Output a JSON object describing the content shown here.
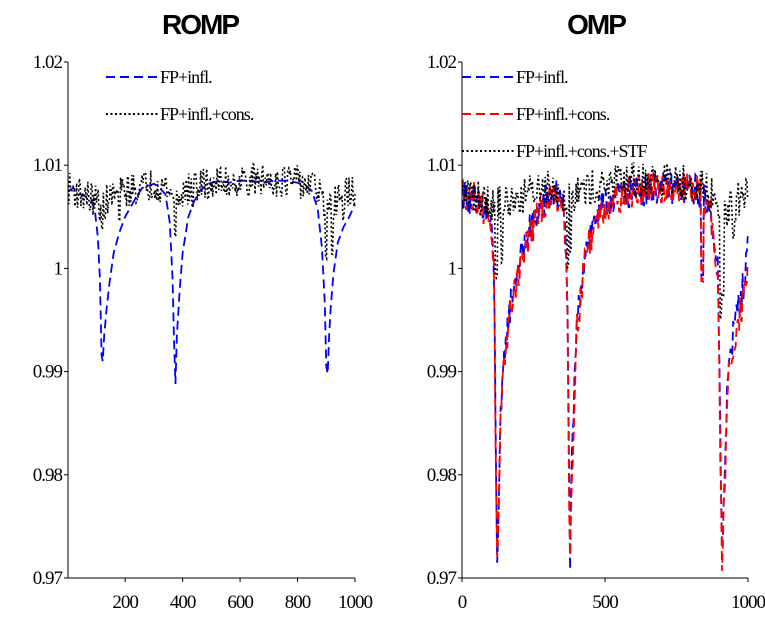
{
  "chart_data": [
    {
      "type": "line",
      "title": "ROMP",
      "xlabel": "",
      "ylabel": "",
      "xlim": [
        1,
        1000
      ],
      "ylim": [
        0.97,
        1.02
      ],
      "xticks": [
        200,
        400,
        600,
        800,
        1000
      ],
      "yticks": [
        0.97,
        0.98,
        0.99,
        1,
        1.01,
        1.02
      ],
      "ytick_labels": [
        "0.97",
        "0.98",
        "0.99",
        "1",
        "1.01",
        "1.02"
      ],
      "grid": false,
      "legend_position": "top-center",
      "series": [
        {
          "name": "FP+infl.",
          "color": "#0000ff",
          "style": "dashed",
          "x": [
            1,
            20,
            40,
            60,
            80,
            95,
            105,
            112,
            118,
            122,
            127,
            135,
            145,
            160,
            180,
            200,
            220,
            240,
            260,
            280,
            300,
            320,
            340,
            355,
            365,
            370,
            375,
            380,
            390,
            400,
            420,
            440,
            460,
            480,
            500,
            530,
            560,
            600,
            640,
            680,
            720,
            760,
            800,
            830,
            850,
            870,
            885,
            895,
            900,
            905,
            910,
            915,
            925,
            940,
            960,
            980,
            1000
          ],
          "y": [
            1.0075,
            1.0078,
            1.0072,
            1.007,
            1.0068,
            1.0055,
            1.003,
            0.999,
            0.9915,
            0.991,
            0.9935,
            0.996,
            0.9985,
            1.0015,
            1.0035,
            1.005,
            1.006,
            1.007,
            1.0078,
            1.008,
            1.0082,
            1.0078,
            1.0072,
            1.0045,
            0.999,
            0.993,
            0.9888,
            0.9935,
            0.998,
            1.0015,
            1.005,
            1.0065,
            1.0075,
            1.008,
            1.0083,
            1.0085,
            1.0083,
            1.0085,
            1.0085,
            1.0083,
            1.0085,
            1.0085,
            1.0083,
            1.008,
            1.0075,
            1.0058,
            1.002,
            0.9965,
            0.9905,
            0.9898,
            0.9935,
            0.996,
            0.9995,
            1.0025,
            1.004,
            1.005,
            1.0062
          ]
        },
        {
          "name": "FP+infl.+cons.",
          "color": "#000000",
          "style": "dotted",
          "noise": true,
          "base": [
            [
              1,
              1.0078
            ],
            [
              50,
              1.0072
            ],
            [
              100,
              1.0065
            ],
            [
              120,
              1.006
            ],
            [
              150,
              1.007
            ],
            [
              200,
              1.0075
            ],
            [
              300,
              1.0082
            ],
            [
              350,
              1.0078
            ],
            [
              370,
              1.0065
            ],
            [
              390,
              1.0072
            ],
            [
              450,
              1.008
            ],
            [
              600,
              1.0085
            ],
            [
              700,
              1.0086
            ],
            [
              800,
              1.0084
            ],
            [
              870,
              1.0078
            ],
            [
              895,
              1.006
            ],
            [
              910,
              1.0055
            ],
            [
              940,
              1.007
            ],
            [
              1000,
              1.0075
            ]
          ],
          "dips": [
            [
              120,
              1.0035
            ],
            [
              180,
              1.0045
            ],
            [
              375,
              1.0028
            ],
            [
              435,
              1.0058
            ],
            [
              900,
              1.0005
            ],
            [
              920,
              1.001
            ],
            [
              960,
              1.0045
            ]
          ],
          "amplitude": 0.0016,
          "step": 3
        }
      ]
    },
    {
      "type": "line",
      "title": "OMP",
      "xlabel": "",
      "ylabel": "",
      "xlim": [
        0,
        1000
      ],
      "ylim": [
        0.97,
        1.02
      ],
      "xticks": [
        0,
        500,
        1000
      ],
      "yticks": [
        0.97,
        0.98,
        0.99,
        1,
        1.01,
        1.02
      ],
      "ytick_labels": [
        "0.97",
        "0.98",
        "0.99",
        "1",
        "1.01",
        "1.02"
      ],
      "grid": false,
      "legend_position": "top-center",
      "series": [
        {
          "name": "FP+infl.",
          "color": "#0000ff",
          "style": "dashed",
          "noise": true,
          "base": [
            [
              0,
              1.0072
            ],
            [
              60,
              1.0062
            ],
            [
              100,
              1.0045
            ],
            [
              112,
              1.0
            ],
            [
              118,
              0.983
            ],
            [
              123,
              0.9725
            ],
            [
              127,
              0.9745
            ],
            [
              135,
              0.985
            ],
            [
              150,
              0.9925
            ],
            [
              175,
              0.9975
            ],
            [
              200,
              1.0005
            ],
            [
              240,
              1.004
            ],
            [
              280,
              1.0062
            ],
            [
              330,
              1.0072
            ],
            [
              355,
              1.006
            ],
            [
              368,
              1.0
            ],
            [
              374,
              0.98
            ],
            [
              378,
              0.972
            ],
            [
              384,
              0.9805
            ],
            [
              400,
              0.994
            ],
            [
              430,
              1.0018
            ],
            [
              470,
              1.0052
            ],
            [
              520,
              1.0068
            ],
            [
              600,
              1.0075
            ],
            [
              700,
              1.0078
            ],
            [
              800,
              1.0078
            ],
            [
              840,
              1.0072
            ],
            [
              870,
              1.0055
            ],
            [
              895,
              1.0
            ],
            [
              905,
              0.98
            ],
            [
              910,
              0.9705
            ],
            [
              916,
              0.978
            ],
            [
              930,
              0.9905
            ],
            [
              960,
              0.9955
            ],
            [
              985,
              0.9985
            ],
            [
              1000,
              1.002
            ]
          ],
          "dips": [
            [
              840,
              0.9985
            ]
          ],
          "amplitude": 0.0016,
          "step": 3
        },
        {
          "name": "FP+infl.+cons.",
          "color": "#ff0000",
          "style": "dashed",
          "noise": true,
          "base": [
            [
              0,
              1.0075
            ],
            [
              60,
              1.0065
            ],
            [
              100,
              1.0048
            ],
            [
              112,
              1.0
            ],
            [
              118,
              0.982
            ],
            [
              122,
              0.9705
            ],
            [
              127,
              0.974
            ],
            [
              135,
              0.9845
            ],
            [
              150,
              0.992
            ],
            [
              175,
              0.997
            ],
            [
              200,
              1.0
            ],
            [
              240,
              1.0035
            ],
            [
              280,
              1.006
            ],
            [
              330,
              1.0072
            ],
            [
              355,
              1.006
            ],
            [
              368,
              0.999
            ],
            [
              374,
              0.979
            ],
            [
              377,
              0.9705
            ],
            [
              384,
              0.98
            ],
            [
              400,
              0.9935
            ],
            [
              430,
              1.0012
            ],
            [
              470,
              1.0048
            ],
            [
              520,
              1.0066
            ],
            [
              600,
              1.0075
            ],
            [
              700,
              1.0078
            ],
            [
              800,
              1.0078
            ],
            [
              840,
              1.0072
            ],
            [
              870,
              1.0055
            ],
            [
              895,
              0.999
            ],
            [
              905,
              0.978
            ],
            [
              910,
              0.97
            ],
            [
              916,
              0.977
            ],
            [
              930,
              0.989
            ],
            [
              960,
              0.9945
            ],
            [
              985,
              0.997
            ],
            [
              1000,
              0.9998
            ]
          ],
          "dips": [
            [
              840,
              0.9985
            ]
          ],
          "amplitude": 0.0016,
          "step": 3
        },
        {
          "name": "FP+infl.+cons.+STF",
          "color": "#000000",
          "style": "dotted",
          "noise": true,
          "base": [
            [
              0,
              1.0075
            ],
            [
              50,
              1.007
            ],
            [
              100,
              1.0065
            ],
            [
              140,
              1.0062
            ],
            [
              200,
              1.0068
            ],
            [
              300,
              1.0082
            ],
            [
              360,
              1.007
            ],
            [
              380,
              1.0072
            ],
            [
              450,
              1.0078
            ],
            [
              600,
              1.0085
            ],
            [
              700,
              1.0086
            ],
            [
              800,
              1.0083
            ],
            [
              870,
              1.0072
            ],
            [
              900,
              1.0055
            ],
            [
              930,
              1.0058
            ],
            [
              960,
              1.0065
            ],
            [
              1000,
              1.0072
            ]
          ],
          "dips": [
            [
              120,
              0.999
            ],
            [
              140,
              1.0005
            ],
            [
              370,
              1.0
            ],
            [
              380,
              1.0015
            ],
            [
              905,
              0.995
            ],
            [
              912,
              0.997
            ],
            [
              950,
              1.0028
            ]
          ],
          "amplitude": 0.0018,
          "step": 3
        }
      ]
    }
  ]
}
